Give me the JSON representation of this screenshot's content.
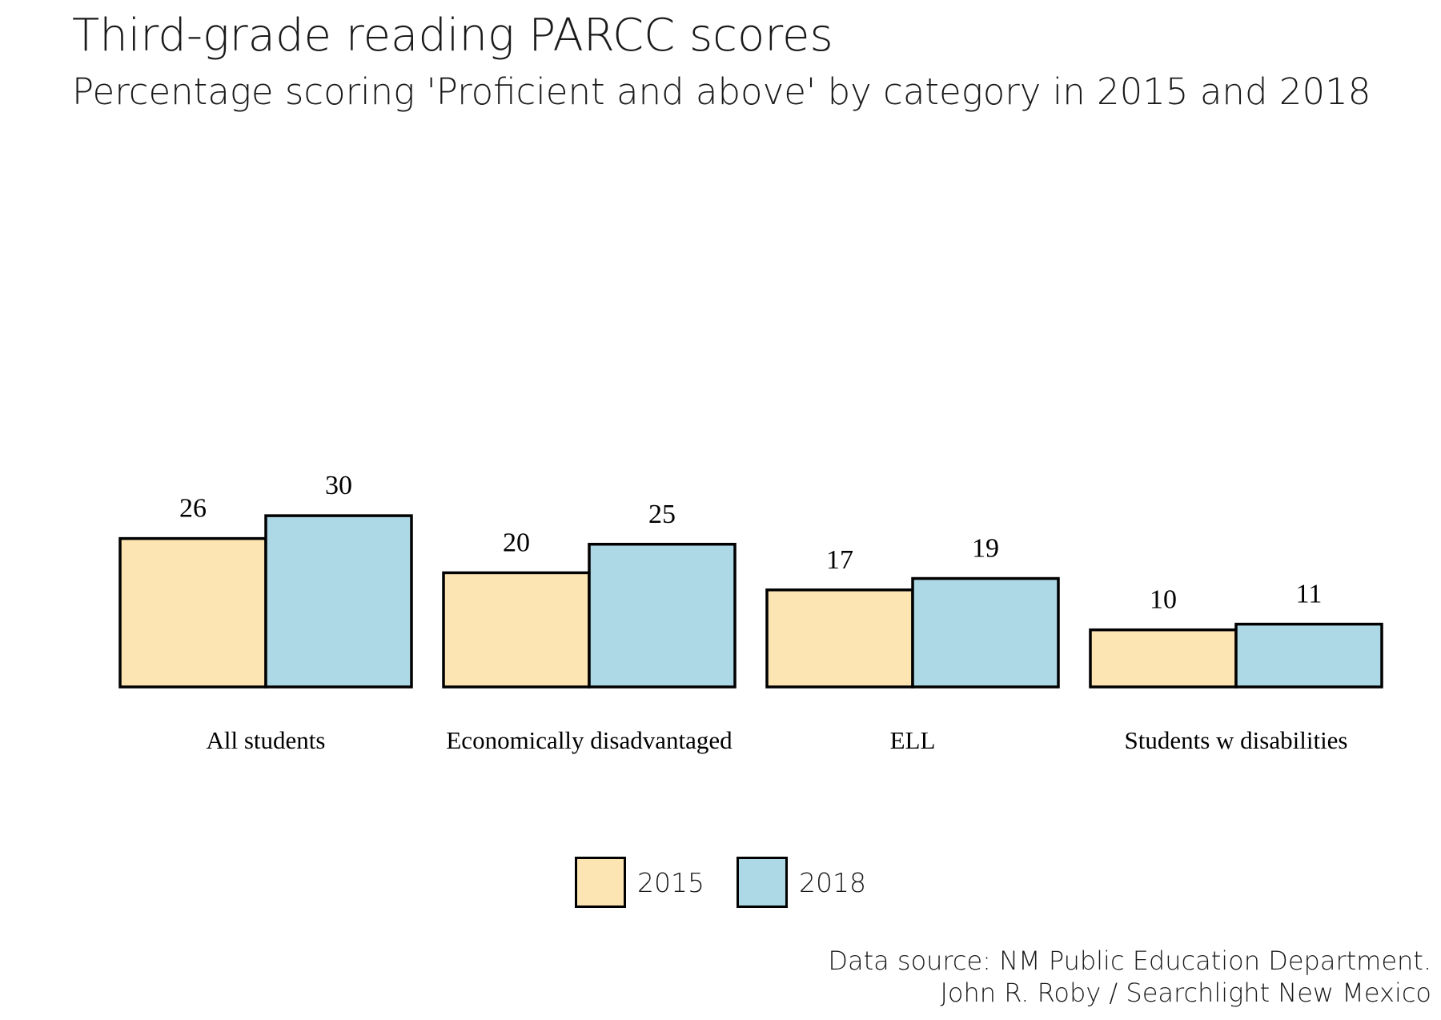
{
  "chart_data": {
    "type": "bar",
    "title": "Third-grade reading PARCC scores",
    "subtitle": "Percentage scoring 'Proficient and above' by category in 2015 and 2018",
    "categories": [
      "All students",
      "Economically disadvantaged",
      "ELL",
      "Students w disabilities"
    ],
    "series": [
      {
        "name": "2015",
        "values": [
          26,
          20,
          17,
          10
        ],
        "color": "#FDE4B3"
      },
      {
        "name": "2018",
        "values": [
          30,
          25,
          19,
          11
        ],
        "color": "#ADD8E6"
      }
    ],
    "ylim": [
      0,
      100
    ],
    "grid": false,
    "legend_position": "bottom-center",
    "caption_line1": "Data source: NM Public Education Department.",
    "caption_line2": "John R. Roby / Searchlight New Mexico"
  }
}
